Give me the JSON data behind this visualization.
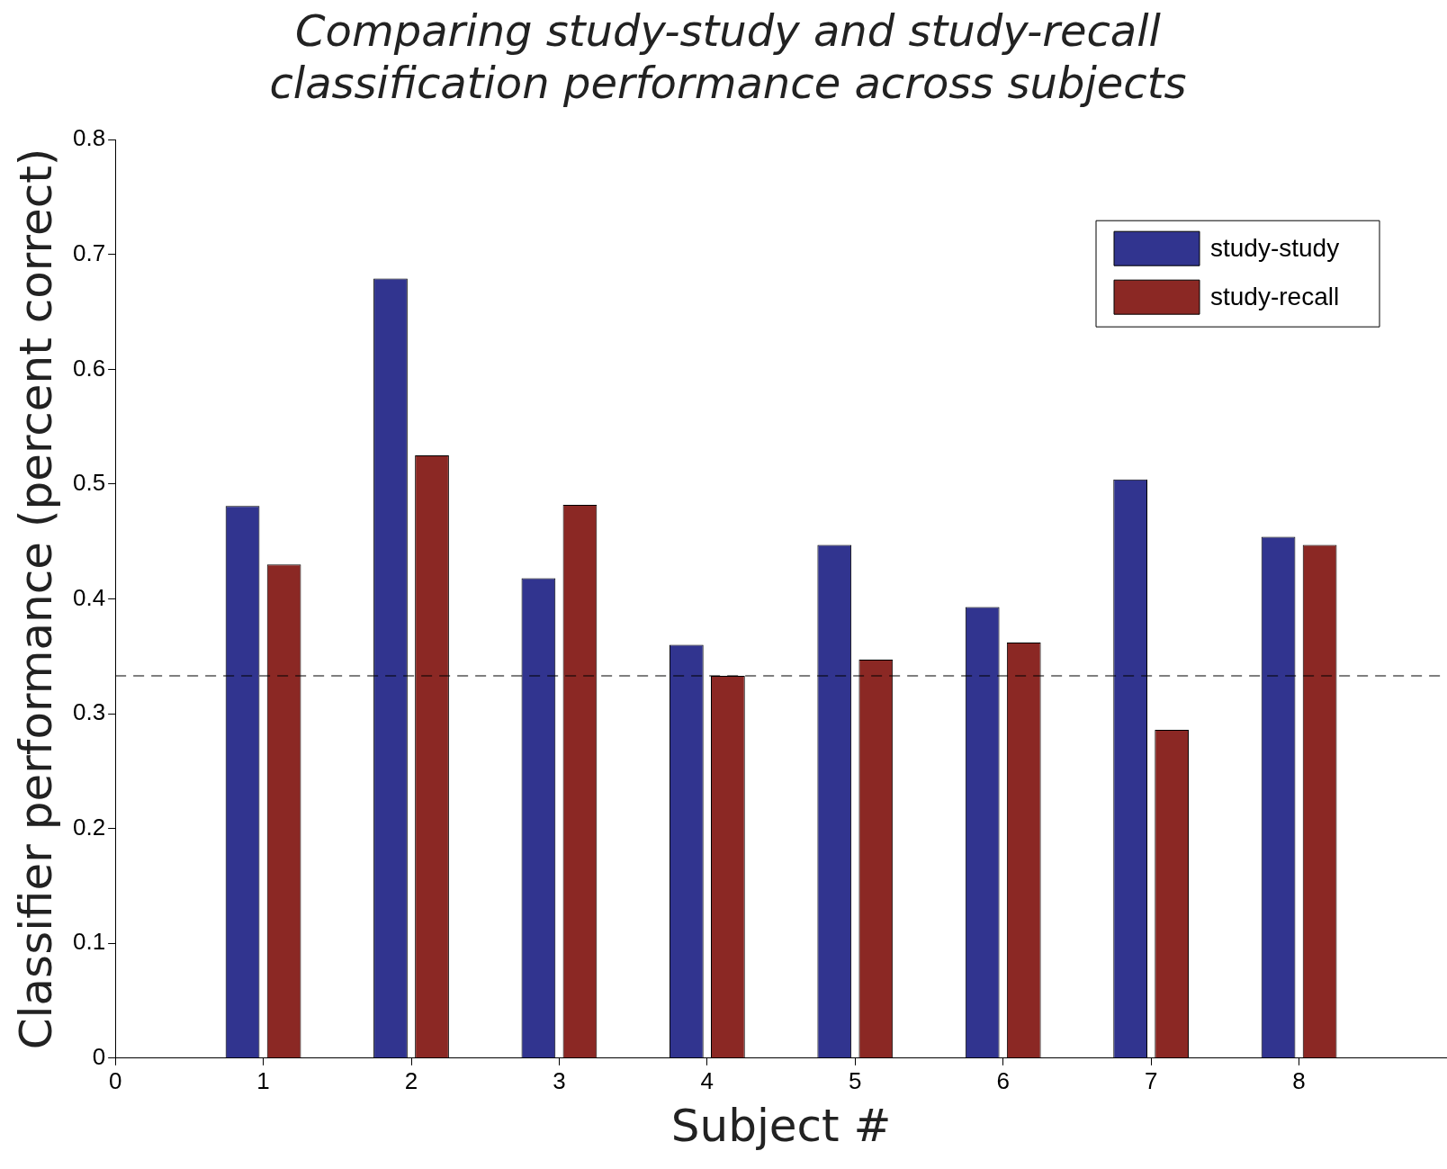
{
  "chart_data": {
    "type": "bar",
    "title": [
      "Comparing study-study and study-recall",
      "classification performance across subjects"
    ],
    "xlabel": "Subject #",
    "ylabel": "Classifier performance (percent correct)",
    "x": [
      1,
      2,
      3,
      4,
      5,
      6,
      7,
      8
    ],
    "series": [
      {
        "name": "study-study",
        "color": "#31348f",
        "values": [
          0.481,
          0.679,
          0.418,
          0.36,
          0.447,
          0.393,
          0.504,
          0.454
        ]
      },
      {
        "name": "study-recall",
        "color": "#8b2824",
        "values": [
          0.43,
          0.525,
          0.482,
          0.333,
          0.347,
          0.362,
          0.286,
          0.447
        ]
      }
    ],
    "xlim": [
      0,
      9
    ],
    "xticks": [
      0,
      1,
      2,
      3,
      4,
      5,
      6,
      7,
      8
    ],
    "ylim": [
      0,
      0.8
    ],
    "yticks": [
      0,
      0.1,
      0.2,
      0.3,
      0.4,
      0.5,
      0.6,
      0.7,
      0.8
    ],
    "ref_lines": [
      {
        "axis": "y",
        "value": 0.333,
        "color": "#000000",
        "line_style": "dashed"
      }
    ],
    "legend": "top right",
    "grid": false
  }
}
